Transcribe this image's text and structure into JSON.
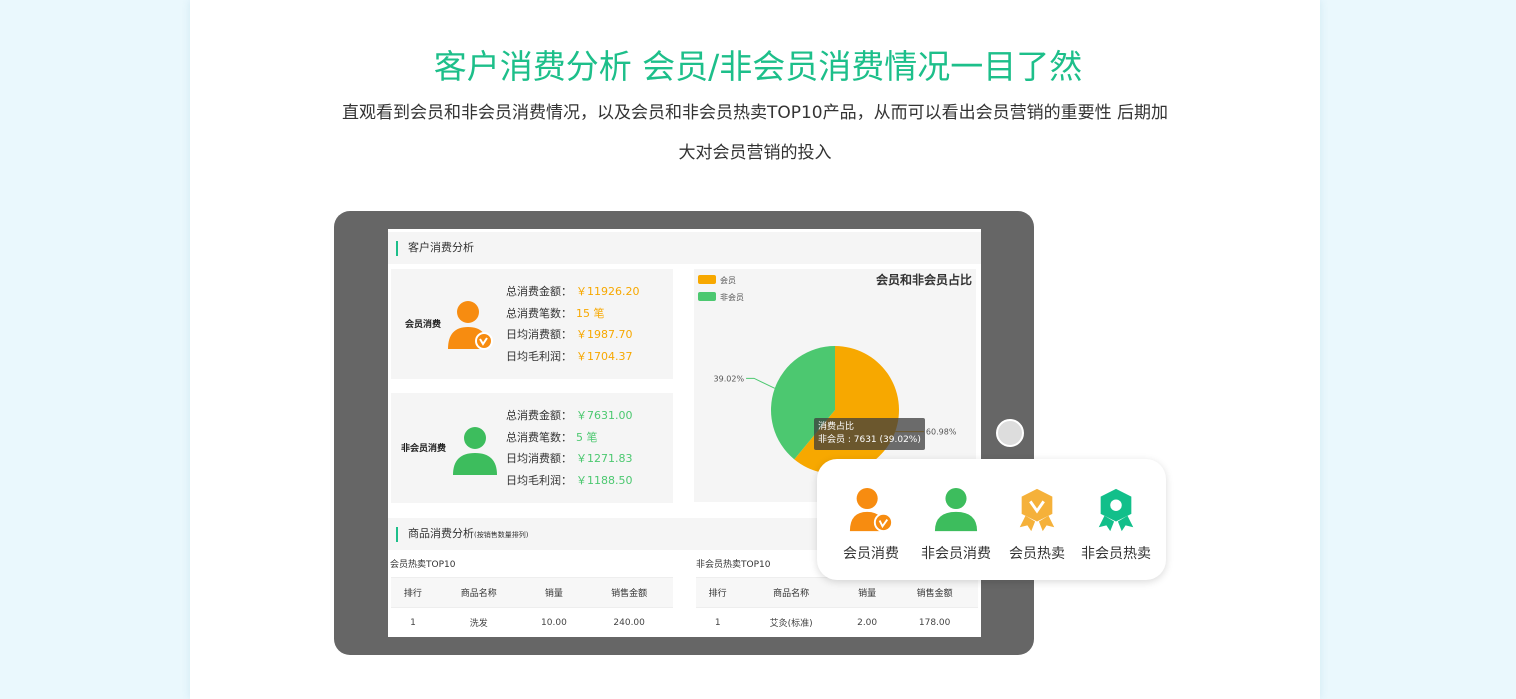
{
  "header": {
    "title": "客户消费分析 会员/非会员消费情况一目了然",
    "subtitle_line1": "直观看到会员和非会员消费情况，以及会员和非会员热卖TOP10产品，从而可以看出会员营销的重要性 后期加",
    "subtitle_line2": "大对会员营销的投入"
  },
  "screen": {
    "section1": "客户消费分析",
    "member": {
      "label": "会员消费",
      "rows": [
        {
          "k": "总消费金额：",
          "v": "￥11926.20"
        },
        {
          "k": "总消费笔数：",
          "v": "15 笔"
        },
        {
          "k": "日均消费额：",
          "v": "￥1987.70"
        },
        {
          "k": "日均毛利润：",
          "v": "￥1704.37"
        }
      ]
    },
    "nonmember": {
      "label": "非会员消费",
      "rows": [
        {
          "k": "总消费金额：",
          "v": "￥7631.00"
        },
        {
          "k": "总消费笔数：",
          "v": "5 笔"
        },
        {
          "k": "日均消费额：",
          "v": "￥1271.83"
        },
        {
          "k": "日均毛利润：",
          "v": "￥1188.50"
        }
      ]
    },
    "section2": "商品消费分析",
    "section2_note": "(按销售数量排列)",
    "member_top": {
      "title": "会员热卖TOP10",
      "headers": [
        "排行",
        "商品名称",
        "销量",
        "销售金额"
      ],
      "rows": [
        [
          "1",
          "洗发",
          "10.00",
          "240.00"
        ]
      ]
    },
    "nonmember_top": {
      "title": "非会员热卖TOP10",
      "headers": [
        "排行",
        "商品名称",
        "销量",
        "销售金额"
      ],
      "rows": [
        [
          "1",
          "艾灸(标准)",
          "2.00",
          "178.00"
        ]
      ]
    }
  },
  "chart_data": {
    "type": "pie",
    "title": "会员和非会员占比",
    "legend_position": "top-left",
    "series": [
      {
        "name": "会员",
        "value": 11926.2,
        "percent": 60.98,
        "label": "60.98%",
        "color": "#f7a800"
      },
      {
        "name": "非会员",
        "value": 7631,
        "percent": 39.02,
        "label": "39.02%",
        "color": "#4cc870"
      }
    ],
    "tooltip": {
      "title": "消费占比",
      "text": "非会员 : 7631 (39.02%)"
    }
  },
  "features": [
    {
      "label": "会员消费",
      "icon": "member-user-icon",
      "color": "#f78c10"
    },
    {
      "label": "非会员消费",
      "icon": "user-icon",
      "color": "#3dbd5d"
    },
    {
      "label": "会员热卖",
      "icon": "badge-check-icon",
      "color": "#f5b13a"
    },
    {
      "label": "非会员热卖",
      "icon": "badge-icon",
      "color": "#12bf8a"
    }
  ],
  "colors": {
    "accent": "#1dbf8a",
    "member": "#f7a800",
    "nonmember": "#4cc870"
  }
}
